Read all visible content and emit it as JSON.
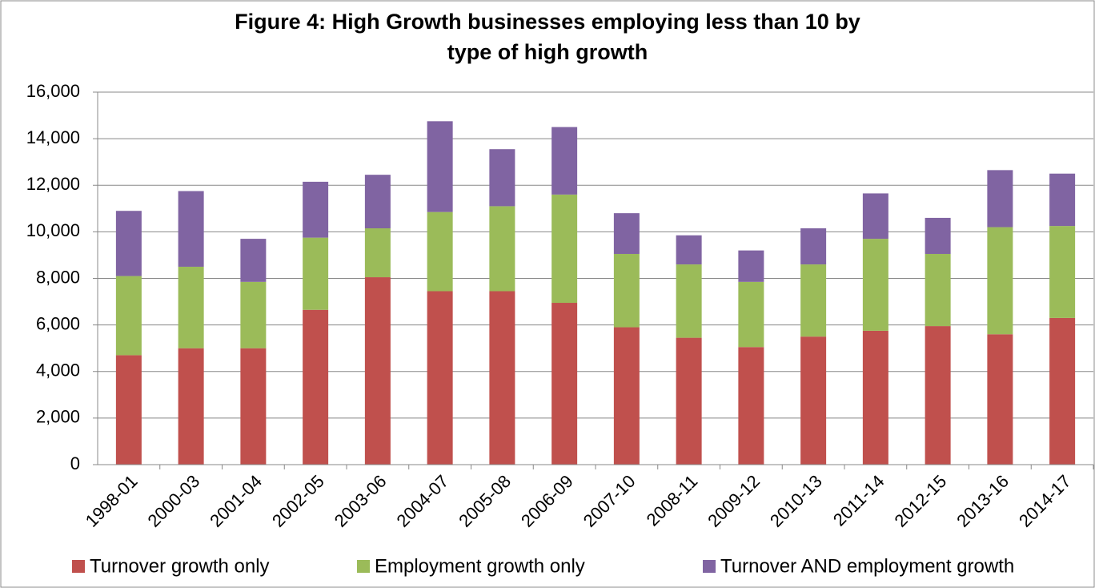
{
  "chart_data": {
    "type": "stacked_bar",
    "title": "Figure 4: High Growth businesses employing less than 10 by type of high growth",
    "categories": [
      "1998-01",
      "2000-03",
      "2001-04",
      "2002-05",
      "2003-06",
      "2004-07",
      "2005-08",
      "2006-09",
      "2007-10",
      "2008-11",
      "2009-12",
      "2010-13",
      "2011-14",
      "2012-15",
      "2013-16",
      "2014-17"
    ],
    "series": [
      {
        "name": "Turnover growth only",
        "color": "#c0504d",
        "values": [
          4700,
          5000,
          5000,
          6650,
          8050,
          7450,
          7450,
          6950,
          5900,
          5450,
          5050,
          5500,
          5750,
          5950,
          5600,
          6300
        ]
      },
      {
        "name": "Employment growth only",
        "color": "#9bbb59",
        "values": [
          3400,
          3500,
          2850,
          3100,
          2100,
          3400,
          3650,
          4650,
          3150,
          3150,
          2800,
          3100,
          3950,
          3100,
          4600,
          3950
        ]
      },
      {
        "name": "Turnover AND employment growth",
        "color": "#8064a2",
        "values": [
          2800,
          3250,
          1850,
          2400,
          2300,
          3900,
          2450,
          2900,
          1750,
          1250,
          1350,
          1550,
          1950,
          1550,
          2450,
          2250
        ]
      }
    ],
    "ylim": [
      0,
      16000
    ],
    "yticks": [
      0,
      {
        "value": 2000,
        "label": "2,000"
      },
      {
        "value": 4000,
        "label": "4,000"
      },
      {
        "value": 6000,
        "label": "6,000"
      },
      {
        "value": 8000,
        "label": "8,000"
      },
      {
        "value": 10000,
        "label": "10,000"
      },
      {
        "value": 12000,
        "label": "12,000"
      },
      {
        "value": 14000,
        "label": "14,000"
      },
      {
        "value": 16000,
        "label": "16,000"
      }
    ],
    "grid": true,
    "legend": "bottom"
  }
}
